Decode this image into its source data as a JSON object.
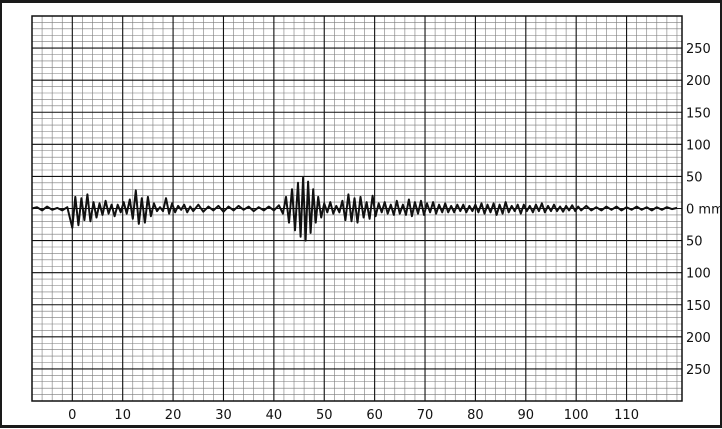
{
  "chart_data": {
    "type": "line",
    "xlabel": "",
    "ylabel": "",
    "xlim": [
      -8,
      121
    ],
    "ylim": [
      -300,
      300
    ],
    "x_ticks": [
      0,
      10,
      20,
      30,
      40,
      50,
      60,
      70,
      80,
      90,
      100,
      110
    ],
    "x_tick_labels": [
      "0",
      "10",
      "20",
      "30",
      "40",
      "50",
      "60",
      "70",
      "80",
      "90",
      "100",
      "110"
    ],
    "y_ticks": [
      250,
      200,
      150,
      100,
      50,
      0,
      -50,
      -100,
      -150,
      -200,
      -250
    ],
    "y_tick_labels": [
      "250",
      "200",
      "150",
      "100",
      "50",
      "0 mm",
      "50",
      "100",
      "150",
      "200",
      "250"
    ],
    "grid": true,
    "minor_grid": true,
    "series": [
      {
        "color": "#111111",
        "points": [
          [
            -8,
            0
          ],
          [
            -7,
            2
          ],
          [
            -6,
            -3
          ],
          [
            -5,
            3
          ],
          [
            -4,
            -2
          ],
          [
            -3,
            1
          ],
          [
            -2,
            -3
          ],
          [
            -1,
            2
          ],
          [
            0,
            -30
          ],
          [
            0.6,
            18
          ],
          [
            1.2,
            -26
          ],
          [
            1.8,
            16
          ],
          [
            2.4,
            -18
          ],
          [
            3,
            22
          ],
          [
            3.6,
            -20
          ],
          [
            4.2,
            10
          ],
          [
            4.8,
            -14
          ],
          [
            5.4,
            8
          ],
          [
            6,
            -10
          ],
          [
            6.6,
            12
          ],
          [
            7.2,
            -8
          ],
          [
            7.8,
            6
          ],
          [
            8.4,
            -12
          ],
          [
            9,
            6
          ],
          [
            9.6,
            -6
          ],
          [
            10.2,
            10
          ],
          [
            10.8,
            -8
          ],
          [
            11.4,
            14
          ],
          [
            12,
            -16
          ],
          [
            12.6,
            28
          ],
          [
            13.2,
            -24
          ],
          [
            13.8,
            16
          ],
          [
            14.4,
            -22
          ],
          [
            15,
            18
          ],
          [
            15.6,
            -12
          ],
          [
            16.2,
            8
          ],
          [
            16.8,
            -4
          ],
          [
            17.4,
            2
          ],
          [
            18,
            -4
          ],
          [
            18.6,
            16
          ],
          [
            19.2,
            -8
          ],
          [
            19.8,
            8
          ],
          [
            20.4,
            -6
          ],
          [
            21,
            4
          ],
          [
            21.6,
            -2
          ],
          [
            22.2,
            6
          ],
          [
            22.8,
            -6
          ],
          [
            23.4,
            3
          ],
          [
            24,
            -4
          ],
          [
            25,
            6
          ],
          [
            26,
            -5
          ],
          [
            27,
            3
          ],
          [
            28,
            -3
          ],
          [
            29,
            4
          ],
          [
            30,
            -5
          ],
          [
            31,
            3
          ],
          [
            32,
            -3
          ],
          [
            33,
            4
          ],
          [
            34,
            -2
          ],
          [
            35,
            3
          ],
          [
            36,
            -4
          ],
          [
            37,
            2
          ],
          [
            38,
            -3
          ],
          [
            39,
            3
          ],
          [
            40,
            -3
          ],
          [
            41,
            5
          ],
          [
            41.8,
            -8
          ],
          [
            42.4,
            18
          ],
          [
            43,
            -22
          ],
          [
            43.6,
            30
          ],
          [
            44.2,
            -34
          ],
          [
            44.8,
            40
          ],
          [
            45.3,
            -44
          ],
          [
            45.8,
            48
          ],
          [
            46.3,
            -50
          ],
          [
            46.8,
            42
          ],
          [
            47.3,
            -38
          ],
          [
            47.8,
            30
          ],
          [
            48.3,
            -22
          ],
          [
            48.8,
            18
          ],
          [
            49.4,
            -14
          ],
          [
            50,
            8
          ],
          [
            50.6,
            -6
          ],
          [
            51.2,
            10
          ],
          [
            51.8,
            -8
          ],
          [
            52.4,
            4
          ],
          [
            53,
            -6
          ],
          [
            53.6,
            12
          ],
          [
            54.2,
            -18
          ],
          [
            54.8,
            22
          ],
          [
            55.4,
            -20
          ],
          [
            56,
            16
          ],
          [
            56.6,
            -22
          ],
          [
            57.2,
            18
          ],
          [
            57.8,
            -14
          ],
          [
            58.4,
            10
          ],
          [
            59,
            -16
          ],
          [
            59.6,
            20
          ],
          [
            60.2,
            -12
          ],
          [
            60.8,
            8
          ],
          [
            61.4,
            -6
          ],
          [
            62,
            10
          ],
          [
            62.6,
            -8
          ],
          [
            63.2,
            6
          ],
          [
            63.8,
            -10
          ],
          [
            64.4,
            12
          ],
          [
            65,
            -8
          ],
          [
            65.6,
            6
          ],
          [
            66.2,
            -10
          ],
          [
            66.8,
            14
          ],
          [
            67.4,
            -12
          ],
          [
            68,
            10
          ],
          [
            68.6,
            -8
          ],
          [
            69.2,
            12
          ],
          [
            69.8,
            -10
          ],
          [
            70.4,
            8
          ],
          [
            71,
            -6
          ],
          [
            71.6,
            10
          ],
          [
            72.2,
            -8
          ],
          [
            72.8,
            6
          ],
          [
            73.4,
            -6
          ],
          [
            74,
            8
          ],
          [
            74.6,
            -6
          ],
          [
            75.2,
            4
          ],
          [
            75.8,
            -6
          ],
          [
            76.4,
            6
          ],
          [
            77,
            -4
          ],
          [
            77.6,
            6
          ],
          [
            78.2,
            -6
          ],
          [
            78.8,
            4
          ],
          [
            79.4,
            -4
          ],
          [
            80,
            6
          ],
          [
            80.6,
            -6
          ],
          [
            81.2,
            8
          ],
          [
            81.8,
            -8
          ],
          [
            82.4,
            6
          ],
          [
            83,
            -6
          ],
          [
            83.6,
            8
          ],
          [
            84.2,
            -10
          ],
          [
            84.8,
            6
          ],
          [
            85.4,
            -8
          ],
          [
            86,
            10
          ],
          [
            86.6,
            -6
          ],
          [
            87.2,
            4
          ],
          [
            87.8,
            -4
          ],
          [
            88.4,
            6
          ],
          [
            89,
            -8
          ],
          [
            89.6,
            6
          ],
          [
            90.2,
            -4
          ],
          [
            90.8,
            4
          ],
          [
            91.4,
            -6
          ],
          [
            92,
            6
          ],
          [
            92.6,
            -4
          ],
          [
            93.2,
            8
          ],
          [
            93.8,
            -6
          ],
          [
            94.4,
            4
          ],
          [
            95,
            -4
          ],
          [
            95.6,
            6
          ],
          [
            96.2,
            -4
          ],
          [
            96.8,
            3
          ],
          [
            97.4,
            -5
          ],
          [
            98,
            4
          ],
          [
            98.6,
            -3
          ],
          [
            99.2,
            5
          ],
          [
            99.8,
            -4
          ],
          [
            100.4,
            3
          ],
          [
            101,
            -3
          ],
          [
            102,
            4
          ],
          [
            103,
            -3
          ],
          [
            104,
            2
          ],
          [
            105,
            -3
          ],
          [
            106,
            3
          ],
          [
            107,
            -2
          ],
          [
            108,
            3
          ],
          [
            109,
            -3
          ],
          [
            110,
            2
          ],
          [
            111,
            -2
          ],
          [
            112,
            3
          ],
          [
            113,
            -2
          ],
          [
            114,
            2
          ],
          [
            115,
            -3
          ],
          [
            116,
            2
          ],
          [
            117,
            -2
          ],
          [
            118,
            2
          ],
          [
            119,
            -1
          ],
          [
            120,
            1
          ]
        ]
      }
    ]
  }
}
